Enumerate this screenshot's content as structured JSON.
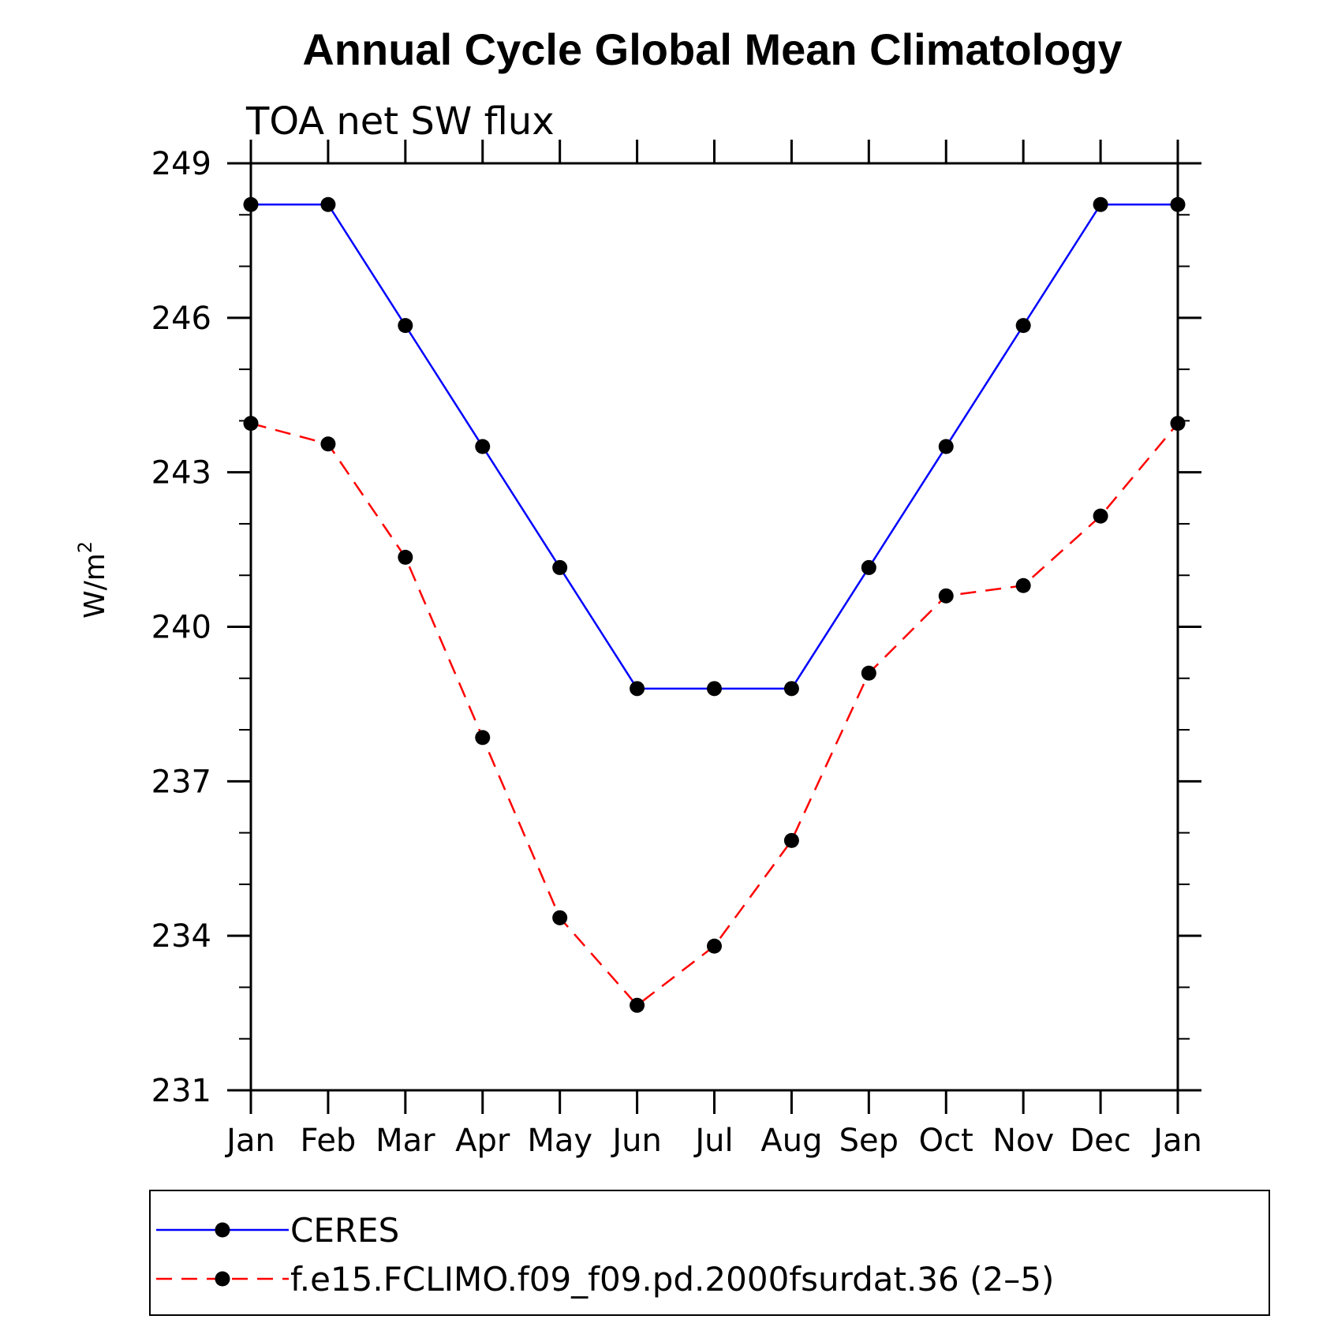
{
  "chart_data": {
    "type": "line",
    "title": "Annual Cycle Global Mean Climatology",
    "subtitle": "TOA net SW flux",
    "ylabel": "W/m",
    "ylabel_sup": "2",
    "xlabel": "",
    "categories": [
      "Jan",
      "Feb",
      "Mar",
      "Apr",
      "May",
      "Jun",
      "Jul",
      "Aug",
      "Sep",
      "Oct",
      "Nov",
      "Dec",
      "Jan"
    ],
    "ylim": [
      231,
      249
    ],
    "yticks": [
      "231",
      "234",
      "237",
      "240",
      "243",
      "246",
      "249"
    ],
    "grid": false,
    "legend_position": "bottom",
    "series": [
      {
        "name": "CERES",
        "color": "#0000ff",
        "dash": "solid",
        "values": [
          248.2,
          248.2,
          245.85,
          243.5,
          241.15,
          238.8,
          238.8,
          238.8,
          241.15,
          243.5,
          245.85,
          248.2,
          248.2
        ]
      },
      {
        "name": "f.e15.FCLIMO.f09_f09.pd.2000fsurdat.36 (2–5)",
        "color": "#ff0000",
        "dash": "dashed",
        "values": [
          243.95,
          243.55,
          241.35,
          237.85,
          234.35,
          232.65,
          233.8,
          235.85,
          239.1,
          240.6,
          240.8,
          242.15,
          243.95
        ]
      }
    ]
  }
}
